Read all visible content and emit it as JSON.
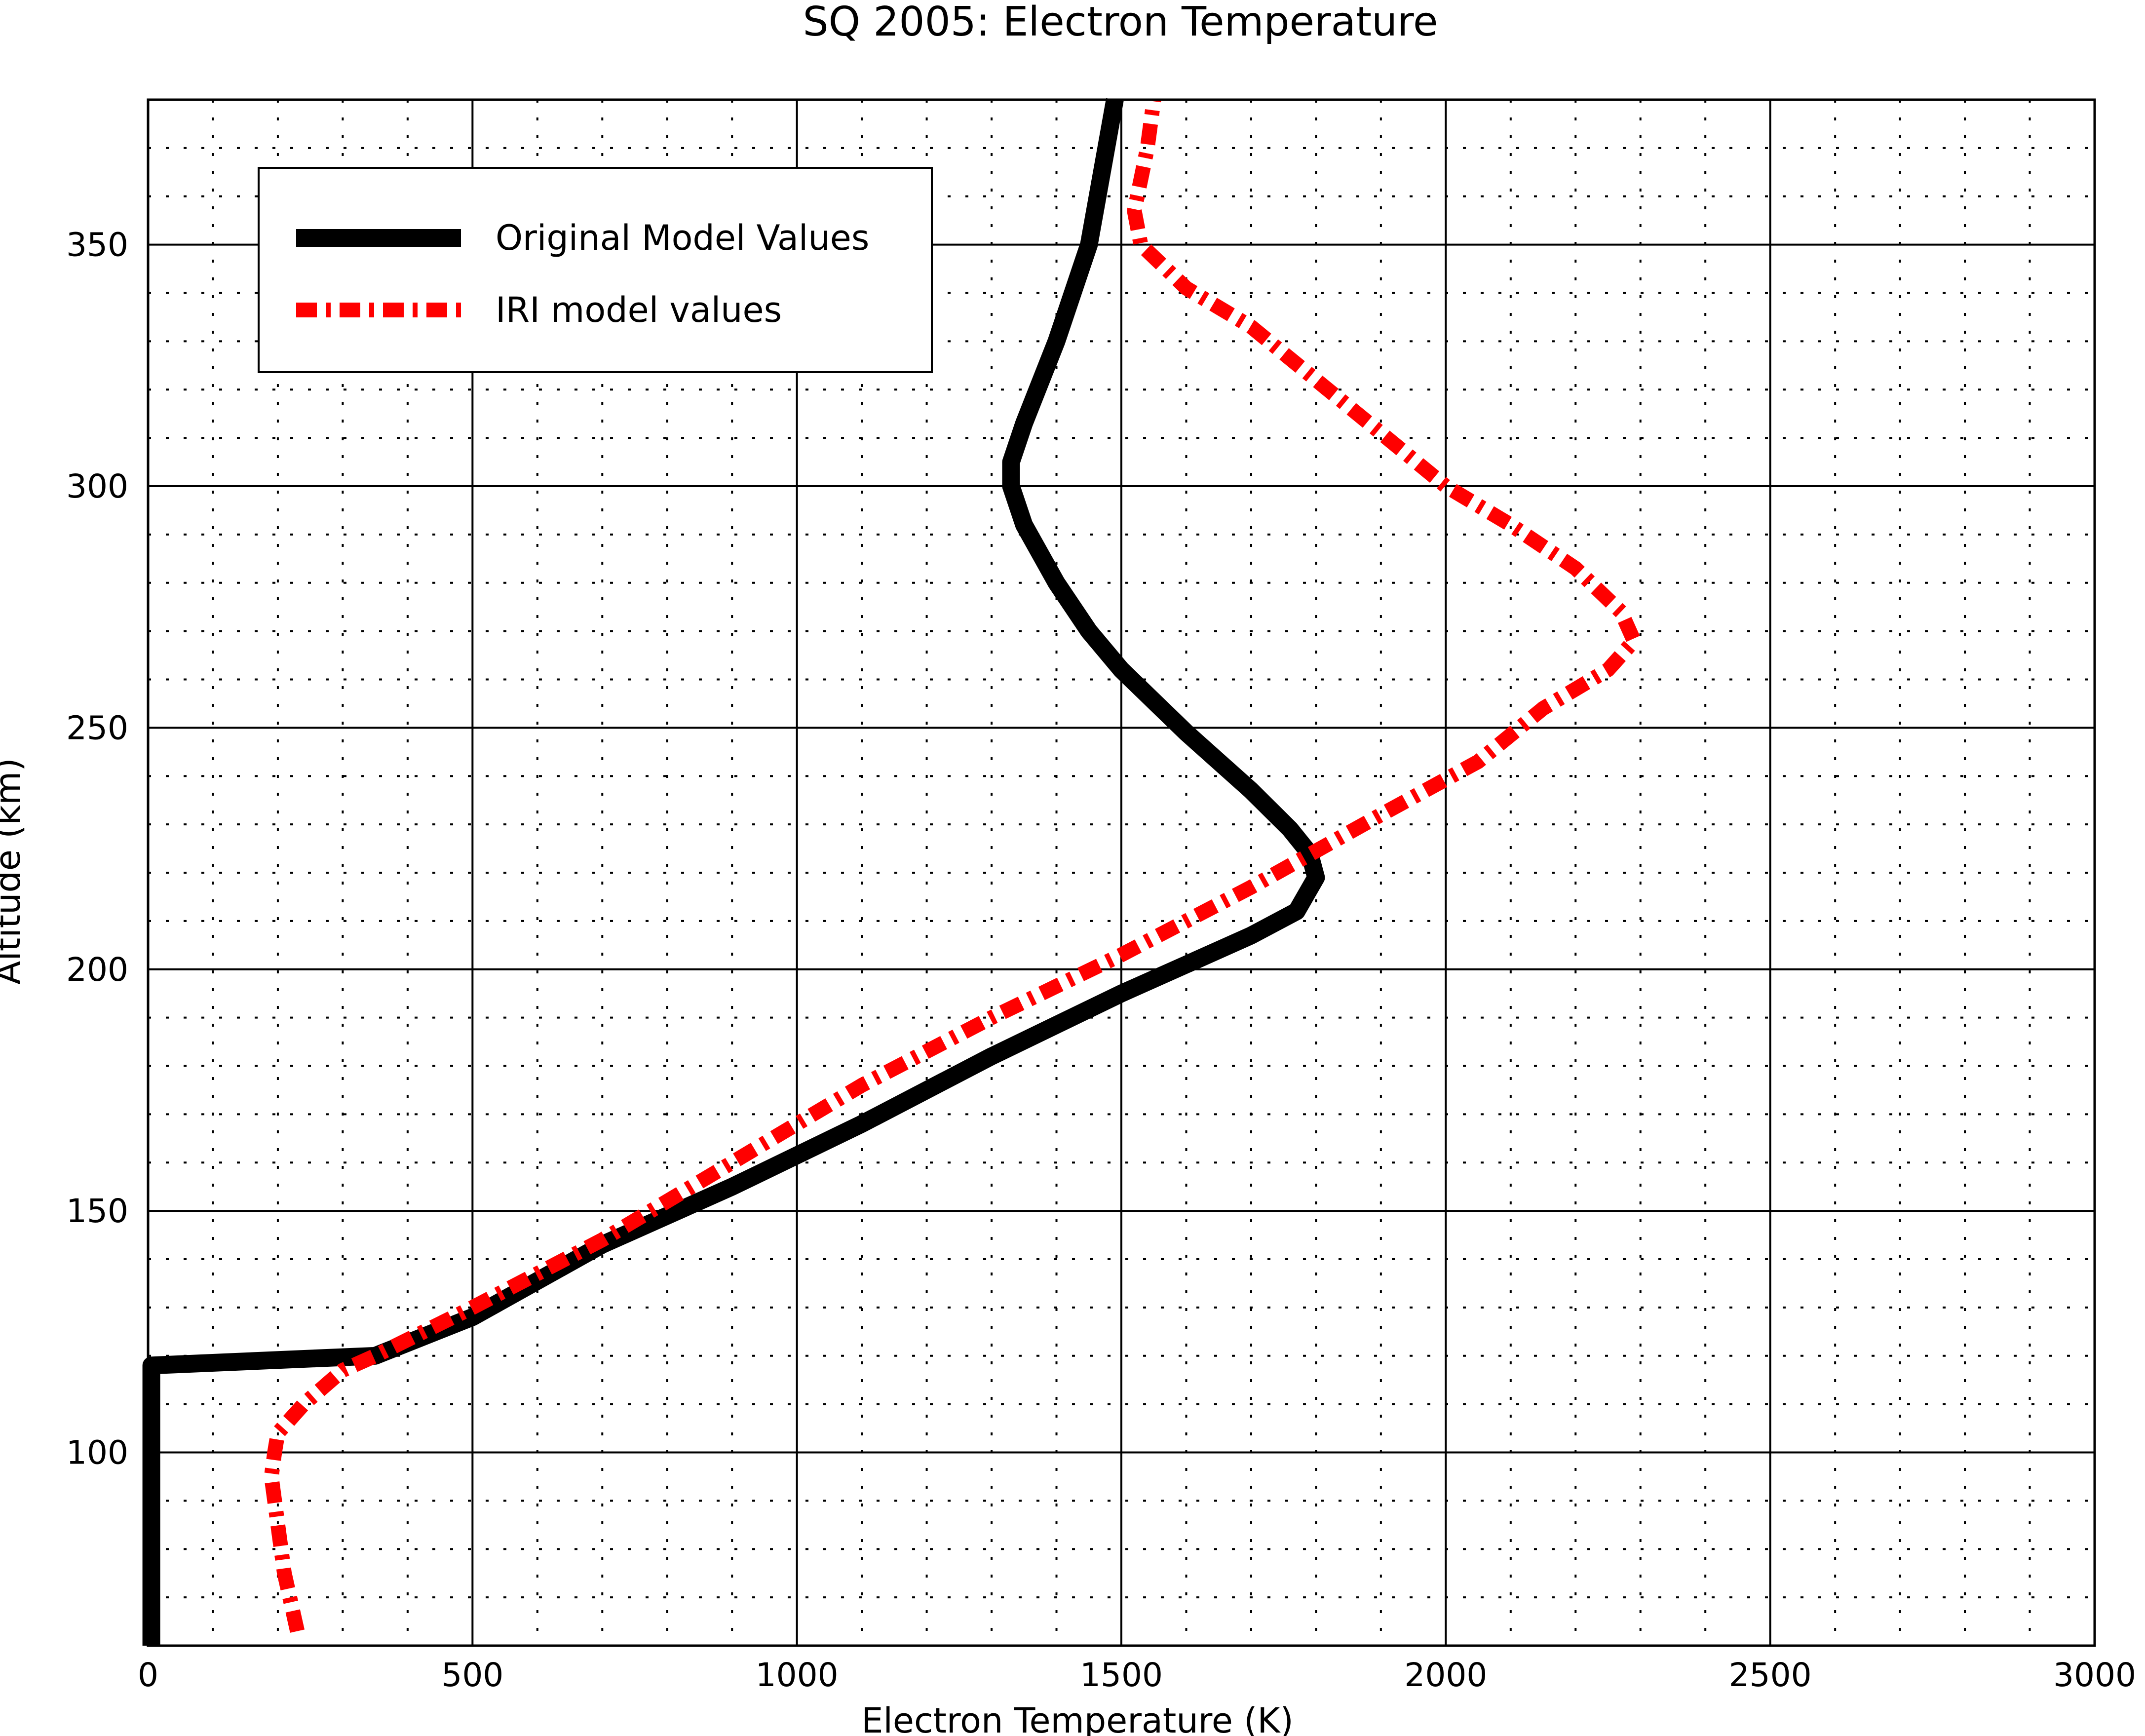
{
  "chart_data": {
    "type": "line",
    "title": "SQ 2005: Electron Temperature",
    "xlabel": "Electron Temperature (K)",
    "ylabel": "Altitude (km)",
    "xlim": [
      0,
      3000
    ],
    "ylim": [
      60,
      380
    ],
    "x_major_ticks": [
      0,
      500,
      1000,
      1500,
      2000,
      2500,
      3000
    ],
    "x_minor_ticks": [
      100,
      200,
      300,
      400,
      600,
      700,
      800,
      900,
      1100,
      1200,
      1300,
      1400,
      1600,
      1700,
      1800,
      1900,
      2100,
      2200,
      2300,
      2400,
      2600,
      2700,
      2800,
      2900
    ],
    "y_major_ticks": [
      100,
      150,
      200,
      250,
      300,
      350
    ],
    "y_minor_ticks": [
      70,
      80,
      90,
      110,
      120,
      130,
      140,
      160,
      170,
      180,
      190,
      210,
      220,
      230,
      240,
      260,
      270,
      280,
      290,
      310,
      320,
      330,
      340,
      360,
      370
    ],
    "grid": true,
    "legend_position": "upper-left",
    "series": [
      {
        "name": "Original Model Values",
        "color": "#000000",
        "style": "solid",
        "points": [
          [
            5,
            60
          ],
          [
            5,
            118
          ],
          [
            350,
            120
          ],
          [
            500,
            128
          ],
          [
            700,
            143
          ],
          [
            900,
            155
          ],
          [
            1100,
            168
          ],
          [
            1300,
            182
          ],
          [
            1500,
            195
          ],
          [
            1600,
            201
          ],
          [
            1700,
            207
          ],
          [
            1770,
            212
          ],
          [
            1800,
            219
          ],
          [
            1790,
            224
          ],
          [
            1760,
            229
          ],
          [
            1700,
            237
          ],
          [
            1600,
            249
          ],
          [
            1500,
            262
          ],
          [
            1450,
            270
          ],
          [
            1400,
            280
          ],
          [
            1350,
            292
          ],
          [
            1330,
            300
          ],
          [
            1330,
            305
          ],
          [
            1350,
            313
          ],
          [
            1400,
            330
          ],
          [
            1450,
            350
          ],
          [
            1490,
            380
          ]
        ]
      },
      {
        "name": "IRI model values",
        "color": "#ff0000",
        "style": "dashdot",
        "points": [
          [
            230,
            63
          ],
          [
            210,
            75
          ],
          [
            200,
            85
          ],
          [
            190,
            95
          ],
          [
            195,
            100
          ],
          [
            200,
            104
          ],
          [
            240,
            110
          ],
          [
            300,
            117
          ],
          [
            350,
            120
          ],
          [
            500,
            130
          ],
          [
            700,
            144
          ],
          [
            900,
            160
          ],
          [
            1100,
            176
          ],
          [
            1300,
            190
          ],
          [
            1500,
            203
          ],
          [
            1700,
            217
          ],
          [
            1900,
            232
          ],
          [
            2050,
            243
          ],
          [
            2150,
            254
          ],
          [
            2250,
            262
          ],
          [
            2290,
            268
          ],
          [
            2270,
            274
          ],
          [
            2200,
            283
          ],
          [
            2100,
            292
          ],
          [
            2000,
            300
          ],
          [
            1900,
            311
          ],
          [
            1800,
            322
          ],
          [
            1700,
            333
          ],
          [
            1600,
            341
          ],
          [
            1530,
            350
          ],
          [
            1520,
            357
          ],
          [
            1540,
            370
          ],
          [
            1550,
            380
          ]
        ]
      }
    ]
  },
  "colors": {
    "background": "#ffffff",
    "axes": "#000000",
    "grid": "#000000",
    "original_series": "#000000",
    "iri_series": "#ff0000"
  }
}
